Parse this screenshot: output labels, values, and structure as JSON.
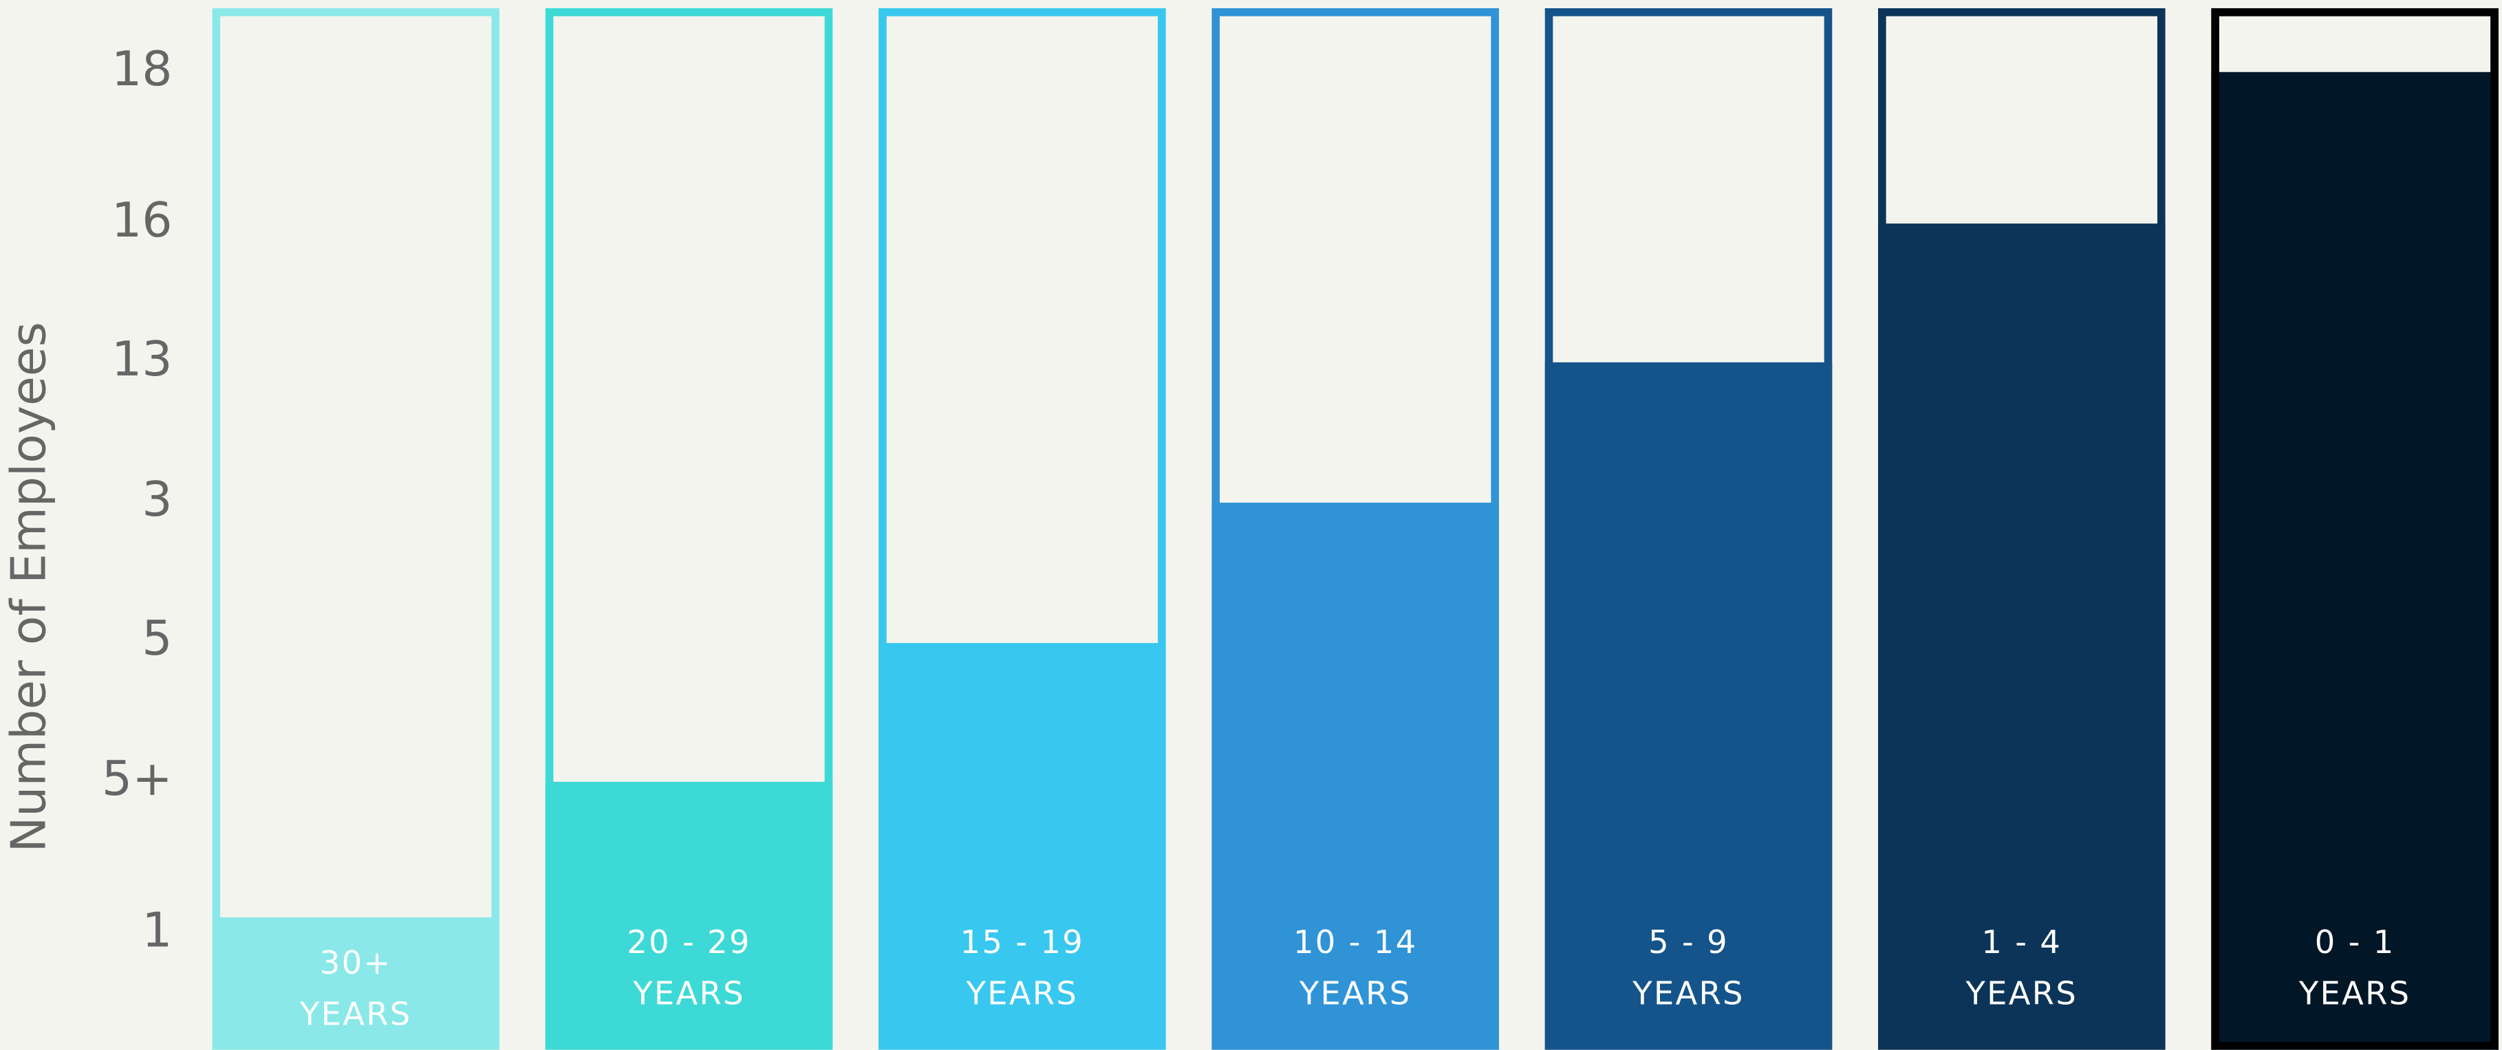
{
  "axis_label": "Number of Employees",
  "levels": [
    "1",
    "5+",
    "5",
    "3",
    "13",
    "16",
    "18"
  ],
  "bars": [
    {
      "range": "30+",
      "unit": "YEARS",
      "color": "#8ae8e8"
    },
    {
      "range": "20 - 29",
      "unit": "YEARS",
      "color": "#3dd9d6"
    },
    {
      "range": "15 - 19",
      "unit": "YEARS",
      "color": "#38c7ee"
    },
    {
      "range": "10 - 14",
      "unit": "YEARS",
      "color": "#2f93d6"
    },
    {
      "range": "5 - 9",
      "unit": "YEARS",
      "color": "#14548a"
    },
    {
      "range": "1 - 4",
      "unit": "YEARS",
      "color": "#0c3458"
    },
    {
      "range": "0 - 1",
      "unit": "YEARS",
      "color": "#011627"
    }
  ]
}
